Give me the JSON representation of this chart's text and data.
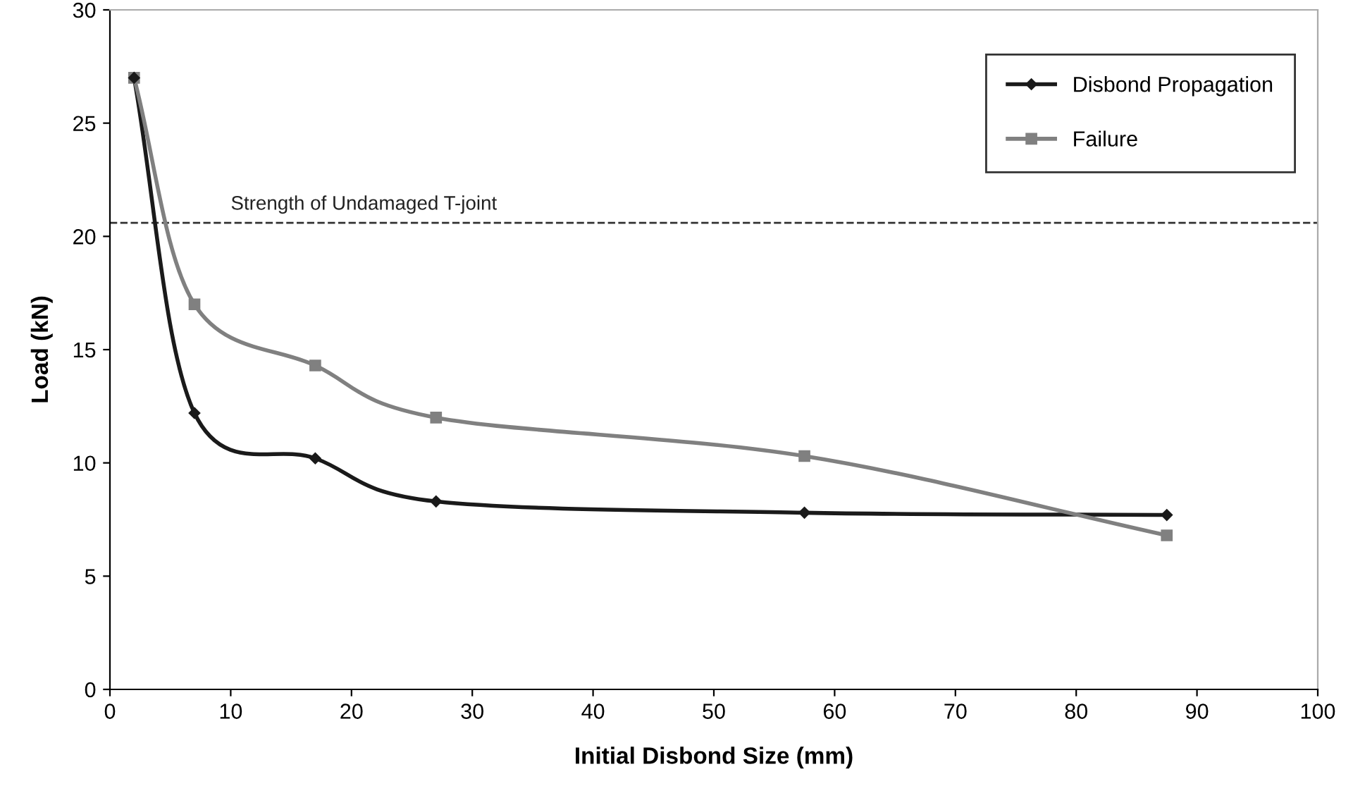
{
  "chart_data": {
    "type": "line",
    "xlabel": "Initial Disbond Size (mm)",
    "ylabel": "Load (kN)",
    "xlim": [
      0,
      100
    ],
    "xticks": [
      0,
      10,
      20,
      30,
      40,
      50,
      60,
      70,
      80,
      90,
      100
    ],
    "ylim": [
      0,
      30
    ],
    "yticks": [
      0,
      5,
      10,
      15,
      20,
      25,
      30
    ],
    "grid": false,
    "legend": "top right",
    "line_style": "solid",
    "series": [
      {
        "name": "Disbond Propagation",
        "color": "#1a1a1a",
        "marker": "diamond",
        "x": [
          2,
          7,
          17,
          27,
          57.5,
          87.5
        ],
        "values": [
          27,
          12.2,
          10.2,
          8.3,
          7.8,
          7.7
        ]
      },
      {
        "name": "Failure",
        "color": "#808080",
        "marker": "square",
        "x": [
          2,
          7,
          17,
          27,
          57.5,
          87.5
        ],
        "values": [
          27,
          17,
          14.3,
          12,
          10.3,
          6.8
        ]
      }
    ],
    "ref_lines": [
      {
        "axis": "y",
        "value": 20.6,
        "label": "Strength of Undamaged T-joint",
        "color": "#333333",
        "line_style": "dashed"
      }
    ]
  }
}
